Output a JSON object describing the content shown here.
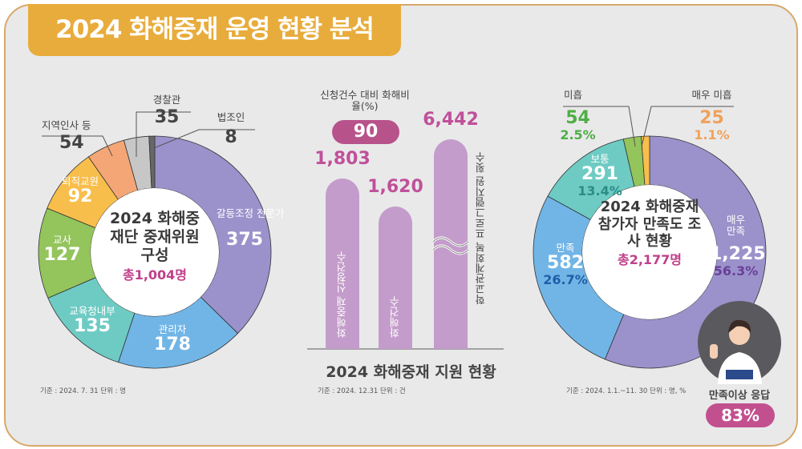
{
  "title": "2024 화해중재 운영 현황 분석",
  "colors": {
    "accent": "#e8ac3c",
    "pink": "#c03f8a",
    "bar": "#c49ccb",
    "border": "#d8a86a"
  },
  "chart_data": [
    {
      "type": "pie",
      "title": "2024 화해중재단 중재위원구성",
      "total_label": "총1,004명",
      "footnote": "기준 : 2024. 7. 31  단위 : 명",
      "slices": [
        {
          "label": "갈등조정 전문가",
          "value": 375,
          "color": "#9b92cb"
        },
        {
          "label": "관리자",
          "value": 178,
          "color": "#71b5e6"
        },
        {
          "label": "교육청내부",
          "value": 135,
          "color": "#6ecbc3"
        },
        {
          "label": "교사",
          "value": 127,
          "color": "#94c45c"
        },
        {
          "label": "퇴직교원",
          "value": 92,
          "color": "#f8be4c"
        },
        {
          "label": "지역인사 등",
          "value": 54,
          "color": "#f4a676"
        },
        {
          "label": "경찰관",
          "value": 35,
          "color": "#c7c7c8"
        },
        {
          "label": "법조인",
          "value": 8,
          "color": "#67676a"
        }
      ]
    },
    {
      "type": "bar",
      "title": "2024 화해중재 지원 현황",
      "footnote": "기준 : 2024. 12.31  단위 : 건",
      "ratio_label": "신청건수 대비 화해비율(%)",
      "ratio_value": "90",
      "axis_break": true,
      "categories": [
        "화해중재 신청건수",
        "화해건수",
        "학교관계회복 프로그램지원 횟수"
      ],
      "values": [
        1803,
        1620,
        6442
      ],
      "value_labels": [
        "1,803",
        "1,620",
        "6,442"
      ]
    },
    {
      "type": "pie",
      "title": "2024 화해중재 참가자 만족도 조사 현황",
      "total_label": "총2,177명",
      "footnote": "기준 : 2024. 1.1.~11. 30  단위 : 명, %",
      "summary_label": "만족이상 응답",
      "summary_value": "83%",
      "slices": [
        {
          "label": "매우 만족",
          "value": 1225,
          "value_label": "1,225",
          "percent": "56.3%",
          "color": "#9b92cb"
        },
        {
          "label": "만족",
          "value": 582,
          "value_label": "582",
          "percent": "26.7%",
          "color": "#71b5e6"
        },
        {
          "label": "보통",
          "value": 291,
          "value_label": "291",
          "percent": "13.4%",
          "color": "#6ecbc3"
        },
        {
          "label": "미흡",
          "value": 54,
          "value_label": "54",
          "percent": "2.5%",
          "color": "#94c45c"
        },
        {
          "label": "매우 미흡",
          "value": 25,
          "value_label": "25",
          "percent": "1.1%",
          "color": "#f8be4c"
        }
      ]
    }
  ]
}
